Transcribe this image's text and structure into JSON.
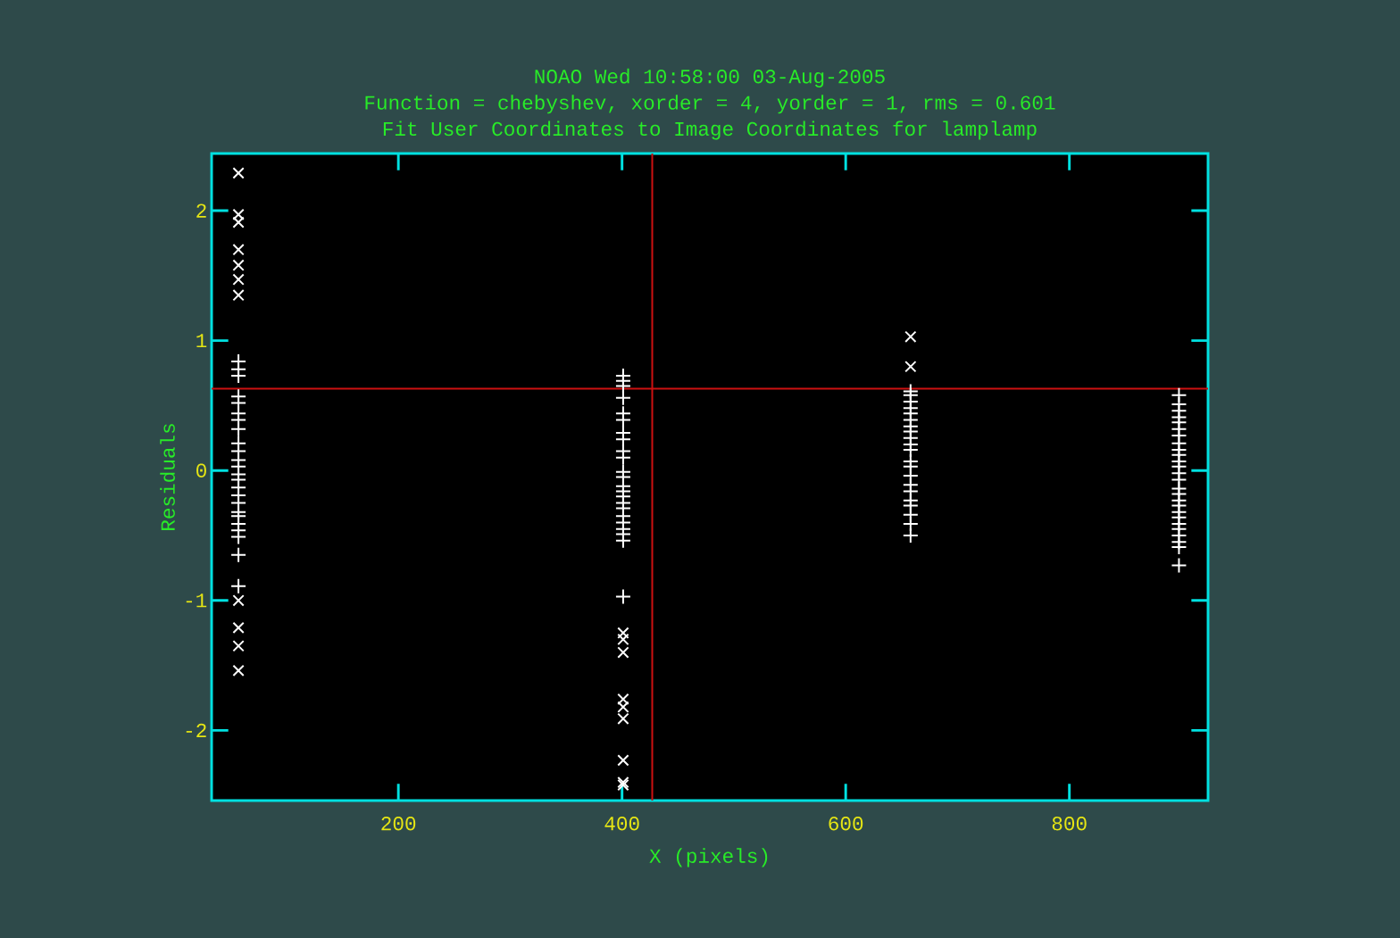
{
  "chart_data": {
    "type": "scatter",
    "title": "NOAO Wed 10:58:00 03-Aug-2005",
    "subtitle": "Function = chebyshev, xorder = 4, yorder = 1, rms = 0.601",
    "annotations": [
      "Fit User Coordinates to Image Coordinates for lamplamp"
    ],
    "xlabel": "X (pixels)",
    "ylabel": "Residuals",
    "xlim": [
      33,
      924
    ],
    "ylim": [
      -2.54,
      2.44
    ],
    "xticks": [
      200,
      400,
      600,
      800
    ],
    "yticks": [
      -2,
      -1,
      0,
      1,
      2
    ],
    "grid": false,
    "ref_lines": [
      {
        "axis": "x",
        "value": 427,
        "color": "#cc1111"
      },
      {
        "axis": "y",
        "value": 0.63,
        "color": "#cc1111"
      }
    ],
    "series": [
      {
        "color": "#ffffff",
        "marker": "cross",
        "x": [
          57,
          57,
          57,
          57,
          57,
          57,
          57,
          57,
          57,
          57,
          57,
          401,
          401,
          401,
          401,
          401,
          401,
          401,
          401,
          401,
          658,
          658
        ],
        "values": [
          2.29,
          1.97,
          1.91,
          1.7,
          1.58,
          1.47,
          1.35,
          -1.0,
          -1.21,
          -1.35,
          -1.54,
          -1.25,
          -1.3,
          -1.4,
          -1.76,
          -1.82,
          -1.91,
          -2.23,
          -2.4,
          -2.42,
          1.03,
          0.8
        ]
      },
      {
        "color": "#ffffff",
        "marker": "plus",
        "x": [
          57,
          57,
          57,
          57,
          57,
          57,
          57,
          57,
          57,
          57,
          57,
          57,
          57,
          57,
          57,
          57,
          57,
          57,
          57,
          57,
          57,
          57,
          57,
          57,
          401,
          401,
          401,
          401,
          401,
          401,
          401,
          401,
          401,
          401,
          401,
          401,
          401,
          401,
          401,
          401,
          401,
          401,
          401,
          401,
          401,
          401,
          401,
          658,
          658,
          658,
          658,
          658,
          658,
          658,
          658,
          658,
          658,
          658,
          658,
          658,
          658,
          658,
          658,
          658,
          658,
          658,
          658,
          658,
          898,
          898,
          898,
          898,
          898,
          898,
          898,
          898,
          898,
          898,
          898,
          898,
          898,
          898,
          898,
          898,
          898,
          898,
          898,
          898,
          898,
          898,
          898,
          898,
          898,
          898
        ],
        "values": [
          0.84,
          0.78,
          0.73,
          0.57,
          0.52,
          0.44,
          0.39,
          0.32,
          0.21,
          0.15,
          0.08,
          0.03,
          -0.03,
          -0.07,
          -0.13,
          -0.19,
          -0.25,
          -0.32,
          -0.35,
          -0.41,
          -0.46,
          -0.51,
          -0.65,
          -0.89,
          0.73,
          0.69,
          0.65,
          0.56,
          0.44,
          0.39,
          0.29,
          0.24,
          0.15,
          0.1,
          -0.01,
          -0.05,
          -0.12,
          -0.16,
          -0.2,
          -0.25,
          -0.29,
          -0.35,
          -0.4,
          -0.45,
          -0.49,
          -0.54,
          -0.97,
          0.61,
          0.58,
          0.53,
          0.48,
          0.44,
          0.39,
          0.34,
          0.3,
          0.25,
          0.2,
          0.16,
          0.07,
          0.03,
          -0.04,
          -0.11,
          -0.16,
          -0.23,
          -0.27,
          -0.34,
          -0.41,
          -0.5,
          0.58,
          0.51,
          0.46,
          0.41,
          0.37,
          0.32,
          0.27,
          0.21,
          0.16,
          0.12,
          0.07,
          0.03,
          -0.02,
          -0.07,
          -0.14,
          -0.18,
          -0.23,
          -0.27,
          -0.32,
          -0.36,
          -0.41,
          -0.45,
          -0.5,
          -0.55,
          -0.59,
          -0.73
        ]
      }
    ]
  }
}
